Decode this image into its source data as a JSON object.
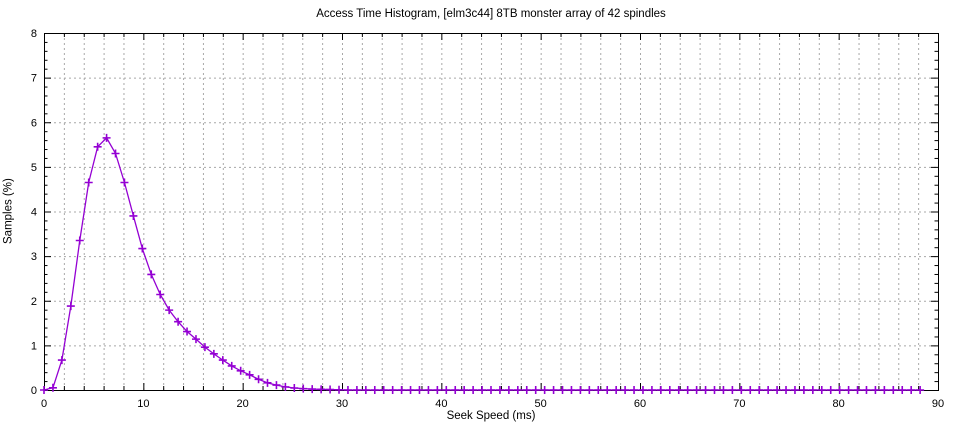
{
  "page": {
    "background": "#ffffff"
  },
  "chart_data": {
    "type": "line",
    "title": "Access Time Histogram, [elm3c44] 8TB monster array of 42 spindles",
    "xlabel": "Seek Speed (ms)",
    "ylabel": "Samples (%)",
    "xlim": [
      0,
      90
    ],
    "ylim": [
      0,
      8
    ],
    "x_major_ticks": [
      0,
      10,
      20,
      30,
      40,
      50,
      60,
      70,
      80,
      90
    ],
    "x_minor_step": 2,
    "x_grid_step": 2,
    "y_major_ticks": [
      0,
      1,
      2,
      3,
      4,
      5,
      6,
      7,
      8
    ],
    "y_minor_step": 0.2,
    "y_grid_step": 1,
    "grid": true,
    "legend": "none",
    "colors": {
      "line": "#9400d3",
      "grid": "#a8a8a8",
      "axis": "#000000"
    },
    "series": [
      {
        "name": "seek-time-samples",
        "color": "#9400d3",
        "marker": "plus",
        "points": [
          [
            0,
            0
          ],
          [
            0.9,
            0.05
          ],
          [
            1.8,
            0.67
          ],
          [
            2.7,
            1.88
          ],
          [
            3.6,
            3.35
          ],
          [
            4.5,
            4.65
          ],
          [
            5.4,
            5.45
          ],
          [
            6.3,
            5.65
          ],
          [
            7.2,
            5.3
          ],
          [
            8.1,
            4.65
          ],
          [
            9.0,
            3.9
          ],
          [
            9.9,
            3.17
          ],
          [
            10.8,
            2.59
          ],
          [
            11.7,
            2.14
          ],
          [
            12.6,
            1.79
          ],
          [
            13.5,
            1.53
          ],
          [
            14.4,
            1.31
          ],
          [
            15.3,
            1.14
          ],
          [
            16.2,
            0.96
          ],
          [
            17.1,
            0.81
          ],
          [
            18.0,
            0.67
          ],
          [
            18.9,
            0.54
          ],
          [
            19.8,
            0.43
          ],
          [
            20.7,
            0.34
          ],
          [
            21.6,
            0.24
          ],
          [
            22.5,
            0.16
          ],
          [
            23.4,
            0.11
          ],
          [
            24.3,
            0.07
          ],
          [
            25.2,
            0.045
          ],
          [
            26.1,
            0.03
          ],
          [
            27.0,
            0.02
          ],
          [
            27.9,
            0.015
          ],
          [
            28.8,
            0.01
          ],
          [
            29.7,
            0.005
          ],
          [
            30.6,
            0
          ],
          [
            31.5,
            0
          ],
          [
            32.4,
            0
          ],
          [
            33.3,
            0
          ],
          [
            34.2,
            0
          ],
          [
            35.1,
            0
          ],
          [
            36.0,
            0
          ],
          [
            36.9,
            0
          ],
          [
            37.8,
            0
          ],
          [
            38.7,
            0
          ],
          [
            39.6,
            0
          ],
          [
            40.5,
            0
          ],
          [
            41.4,
            0
          ],
          [
            42.3,
            0
          ],
          [
            43.2,
            0
          ],
          [
            44.1,
            0
          ],
          [
            45.0,
            0
          ],
          [
            45.9,
            0
          ],
          [
            46.8,
            0
          ],
          [
            47.7,
            0
          ],
          [
            48.6,
            0
          ],
          [
            49.5,
            0
          ],
          [
            50.4,
            0
          ],
          [
            51.3,
            0
          ],
          [
            52.2,
            0
          ],
          [
            53.1,
            0
          ],
          [
            54.0,
            0
          ],
          [
            54.9,
            0
          ],
          [
            55.8,
            0
          ],
          [
            56.7,
            0
          ],
          [
            57.6,
            0
          ],
          [
            58.5,
            0
          ],
          [
            59.4,
            0
          ],
          [
            60.3,
            0
          ],
          [
            61.2,
            0
          ],
          [
            62.1,
            0
          ],
          [
            63.0,
            0
          ],
          [
            63.9,
            0
          ],
          [
            64.8,
            0
          ],
          [
            65.7,
            0
          ],
          [
            66.6,
            0
          ],
          [
            67.5,
            0
          ],
          [
            68.4,
            0
          ],
          [
            69.3,
            0
          ],
          [
            70.2,
            0
          ],
          [
            71.1,
            0
          ],
          [
            72.0,
            0
          ],
          [
            72.9,
            0
          ],
          [
            73.8,
            0
          ],
          [
            74.7,
            0
          ],
          [
            75.6,
            0
          ],
          [
            76.5,
            0
          ],
          [
            77.4,
            0
          ],
          [
            78.3,
            0
          ],
          [
            79.2,
            0
          ],
          [
            80.1,
            0
          ],
          [
            81.0,
            0
          ],
          [
            81.9,
            0
          ],
          [
            82.8,
            0
          ],
          [
            83.7,
            0
          ],
          [
            84.6,
            0
          ],
          [
            85.5,
            0
          ],
          [
            86.4,
            0
          ],
          [
            87.3,
            0
          ],
          [
            88.2,
            0
          ]
        ]
      }
    ]
  }
}
